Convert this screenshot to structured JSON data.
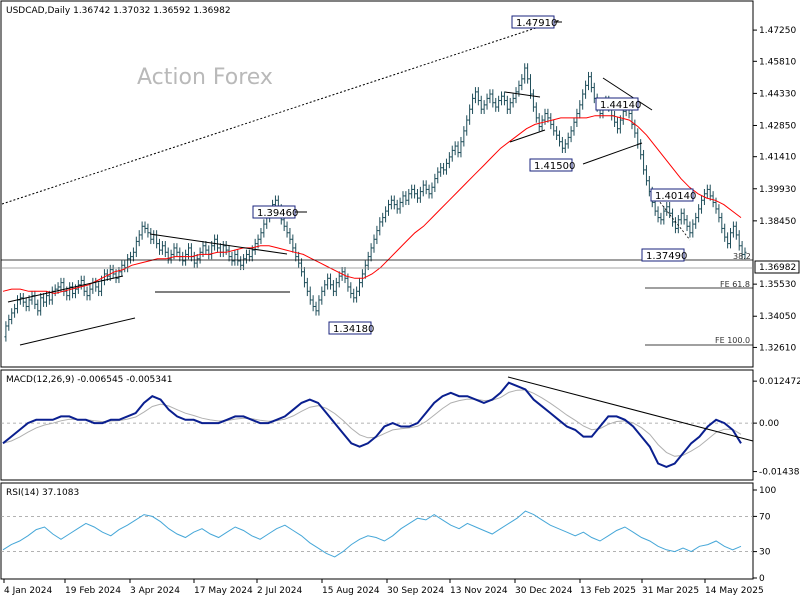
{
  "chart_data": {
    "type": "line",
    "title": "USDCAD,Daily  1.36742 1.37032 1.36592 1.36982",
    "watermark": "Action Forex",
    "x_labels": [
      "4 Jan 2024",
      "19 Feb 2024",
      "3 Apr 2024",
      "17 May 2024",
      "2 Jul 2024",
      "15 Aug 2024",
      "30 Sep 2024",
      "13 Nov 2024",
      "30 Dec 2024",
      "13 Feb 2025",
      "31 Mar 2025",
      "14 May 2025"
    ],
    "price_panel": {
      "ylim": [
        1.318,
        1.485
      ],
      "y_ticks": [
        "1.47250",
        "1.45810",
        "1.44330",
        "1.42850",
        "1.41410",
        "1.39930",
        "1.38450",
        "1.35530",
        "1.34050",
        "1.32610"
      ],
      "y_tick_values": [
        1.4725,
        1.4581,
        1.4433,
        1.4285,
        1.4141,
        1.3993,
        1.3845,
        1.3553,
        1.3405,
        1.3261
      ],
      "current_price_label": "1.36982",
      "current_price": 1.36982,
      "close_series": [
        1.331,
        1.336,
        1.339,
        1.342,
        1.344,
        1.348,
        1.349,
        1.347,
        1.345,
        1.348,
        1.35,
        1.346,
        1.343,
        1.349,
        1.347,
        1.35,
        1.348,
        1.352,
        1.353,
        1.354,
        1.356,
        1.352,
        1.35,
        1.354,
        1.351,
        1.353,
        1.355,
        1.357,
        1.352,
        1.35,
        1.353,
        1.356,
        1.354,
        1.352,
        1.357,
        1.36,
        1.359,
        1.362,
        1.36,
        1.358,
        1.361,
        1.364,
        1.363,
        1.367,
        1.368,
        1.37,
        1.375,
        1.378,
        1.382,
        1.381,
        1.379,
        1.376,
        1.378,
        1.374,
        1.371,
        1.373,
        1.37,
        1.367,
        1.369,
        1.372,
        1.37,
        1.368,
        1.366,
        1.369,
        1.372,
        1.368,
        1.365,
        1.367,
        1.37,
        1.373,
        1.371,
        1.369,
        1.373,
        1.376,
        1.372,
        1.37,
        1.373,
        1.371,
        1.368,
        1.366,
        1.369,
        1.366,
        1.364,
        1.367,
        1.369,
        1.368,
        1.371,
        1.374,
        1.376,
        1.379,
        1.383,
        1.386,
        1.389,
        1.392,
        1.394,
        1.39,
        1.385,
        1.382,
        1.379,
        1.376,
        1.372,
        1.368,
        1.365,
        1.361,
        1.356,
        1.352,
        1.348,
        1.345,
        1.343,
        1.348,
        1.352,
        1.355,
        1.358,
        1.355,
        1.352,
        1.356,
        1.359,
        1.361,
        1.358,
        1.354,
        1.351,
        1.349,
        1.352,
        1.356,
        1.36,
        1.364,
        1.368,
        1.372,
        1.376,
        1.38,
        1.384,
        1.386,
        1.389,
        1.392,
        1.394,
        1.392,
        1.39,
        1.393,
        1.396,
        1.394,
        1.397,
        1.399,
        1.397,
        1.395,
        1.398,
        1.401,
        1.399,
        1.397,
        1.4,
        1.404,
        1.407,
        1.409,
        1.408,
        1.411,
        1.414,
        1.417,
        1.419,
        1.416,
        1.421,
        1.426,
        1.431,
        1.436,
        1.441,
        1.444,
        1.44,
        1.436,
        1.438,
        1.441,
        1.443,
        1.439,
        1.437,
        1.44,
        1.442,
        1.44,
        1.436,
        1.439,
        1.441,
        1.444,
        1.447,
        1.45,
        1.455,
        1.45,
        1.443,
        1.437,
        1.432,
        1.428,
        1.431,
        1.434,
        1.432,
        1.429,
        1.426,
        1.424,
        1.421,
        1.418,
        1.42,
        1.423,
        1.426,
        1.43,
        1.434,
        1.438,
        1.443,
        1.447,
        1.451,
        1.446,
        1.441,
        1.437,
        1.434,
        1.438,
        1.44,
        1.437,
        1.433,
        1.43,
        1.427,
        1.431,
        1.435,
        1.438,
        1.434,
        1.429,
        1.425,
        1.42,
        1.415,
        1.408,
        1.403,
        1.398,
        1.393,
        1.389,
        1.386,
        1.385,
        1.389,
        1.391,
        1.388,
        1.384,
        1.381,
        1.385,
        1.388,
        1.385,
        1.382,
        1.379,
        1.383,
        1.386,
        1.39,
        1.394,
        1.397,
        1.399,
        1.396,
        1.393,
        1.39,
        1.386,
        1.381,
        1.377,
        1.374,
        1.379,
        1.382,
        1.378,
        1.373,
        1.369,
        1.37
      ],
      "ma_series": [
        1.352,
        1.353,
        1.353,
        1.352,
        1.352,
        1.352,
        1.351,
        1.352,
        1.353,
        1.354,
        1.355,
        1.357,
        1.359,
        1.361,
        1.362,
        1.364,
        1.365,
        1.366,
        1.367,
        1.367,
        1.368,
        1.368,
        1.368,
        1.369,
        1.369,
        1.37,
        1.37,
        1.371,
        1.372,
        1.372,
        1.373,
        1.373,
        1.372,
        1.371,
        1.37,
        1.369,
        1.367,
        1.365,
        1.363,
        1.361,
        1.359,
        1.358,
        1.358,
        1.36,
        1.363,
        1.367,
        1.371,
        1.375,
        1.379,
        1.382,
        1.386,
        1.39,
        1.394,
        1.398,
        1.402,
        1.406,
        1.41,
        1.414,
        1.418,
        1.421,
        1.424,
        1.427,
        1.429,
        1.43,
        1.431,
        1.432,
        1.432,
        1.432,
        1.432,
        1.433,
        1.433,
        1.433,
        1.432,
        1.431,
        1.428,
        1.424,
        1.419,
        1.414,
        1.409,
        1.404,
        1.4,
        1.397,
        1.395,
        1.394,
        1.392,
        1.389,
        1.386
      ],
      "ma_color": "#ff0000",
      "bar_color": "#1f4e5a",
      "annotations": [
        {
          "label": "1.47910",
          "value": 1.4791
        },
        {
          "label": "1.44140",
          "value": 1.4414
        },
        {
          "label": "1.41500",
          "value": 1.415
        },
        {
          "label": "1.40140",
          "value": 1.4014
        },
        {
          "label": "1.39460",
          "value": 1.3946
        },
        {
          "label": "1.37490",
          "value": 1.3749
        },
        {
          "label": "1.34180",
          "value": 1.3418
        }
      ],
      "fib_labels": [
        {
          "label": "38.2",
          "value": 1.3715
        },
        {
          "label": "FE 61.8",
          "value": 1.3596
        },
        {
          "label": "FE 100.0",
          "value": 1.3365
        }
      ]
    },
    "macd_panel": {
      "title": "MACD(12,26,9) -0.006545 -0.005341",
      "y_ticks": [
        "0.012472",
        "0.00",
        "-0.014389"
      ],
      "y_tick_values": [
        0.012472,
        0.0,
        -0.014389
      ],
      "ylim": [
        -0.016,
        0.014
      ],
      "macd_series": [
        -0.006,
        -0.004,
        -0.002,
        0.0,
        0.001,
        0.001,
        0.001,
        0.002,
        0.002,
        0.001,
        0.001,
        0.0,
        0.0,
        0.001,
        0.001,
        0.002,
        0.003,
        0.006,
        0.008,
        0.007,
        0.004,
        0.002,
        0.001,
        0.001,
        0.0,
        0.0,
        0.0,
        0.001,
        0.002,
        0.002,
        0.001,
        0.0,
        0.0,
        0.001,
        0.002,
        0.004,
        0.006,
        0.007,
        0.006,
        0.003,
        0.0,
        -0.003,
        -0.006,
        -0.007,
        -0.006,
        -0.004,
        -0.001,
        0.0,
        -0.001,
        -0.001,
        0.0,
        0.003,
        0.006,
        0.008,
        0.009,
        0.008,
        0.008,
        0.007,
        0.006,
        0.007,
        0.009,
        0.012,
        0.011,
        0.01,
        0.007,
        0.005,
        0.003,
        0.001,
        -0.001,
        -0.002,
        -0.004,
        -0.004,
        -0.001,
        0.002,
        0.002,
        0.001,
        -0.001,
        -0.004,
        -0.007,
        -0.012,
        -0.013,
        -0.012,
        -0.009,
        -0.006,
        -0.004,
        -0.001,
        0.001,
        0.0,
        -0.002,
        -0.006
      ],
      "macd_color": "#0a1f8f",
      "signal_color": "#b0b0b0",
      "zero_line_label": "0.00"
    },
    "rsi_panel": {
      "title": "RSI(14) 37.1083",
      "y_ticks": [
        "100",
        "70",
        "30",
        "0"
      ],
      "y_tick_values": [
        100,
        70,
        30,
        0
      ],
      "ylim": [
        0,
        100
      ],
      "rsi_series": [
        32,
        38,
        42,
        48,
        55,
        58,
        50,
        44,
        50,
        56,
        62,
        58,
        52,
        48,
        55,
        60,
        66,
        72,
        70,
        64,
        56,
        50,
        46,
        52,
        56,
        50,
        46,
        52,
        58,
        54,
        48,
        44,
        50,
        56,
        60,
        54,
        48,
        40,
        34,
        28,
        24,
        30,
        38,
        44,
        48,
        46,
        42,
        48,
        56,
        62,
        68,
        66,
        72,
        66,
        60,
        56,
        62,
        58,
        54,
        50,
        56,
        62,
        68,
        76,
        72,
        66,
        60,
        56,
        52,
        48,
        52,
        46,
        42,
        48,
        54,
        58,
        52,
        46,
        42,
        36,
        32,
        30,
        34,
        30,
        36,
        38,
        42,
        36,
        32,
        36
      ],
      "line_color": "#46a7d8"
    }
  }
}
